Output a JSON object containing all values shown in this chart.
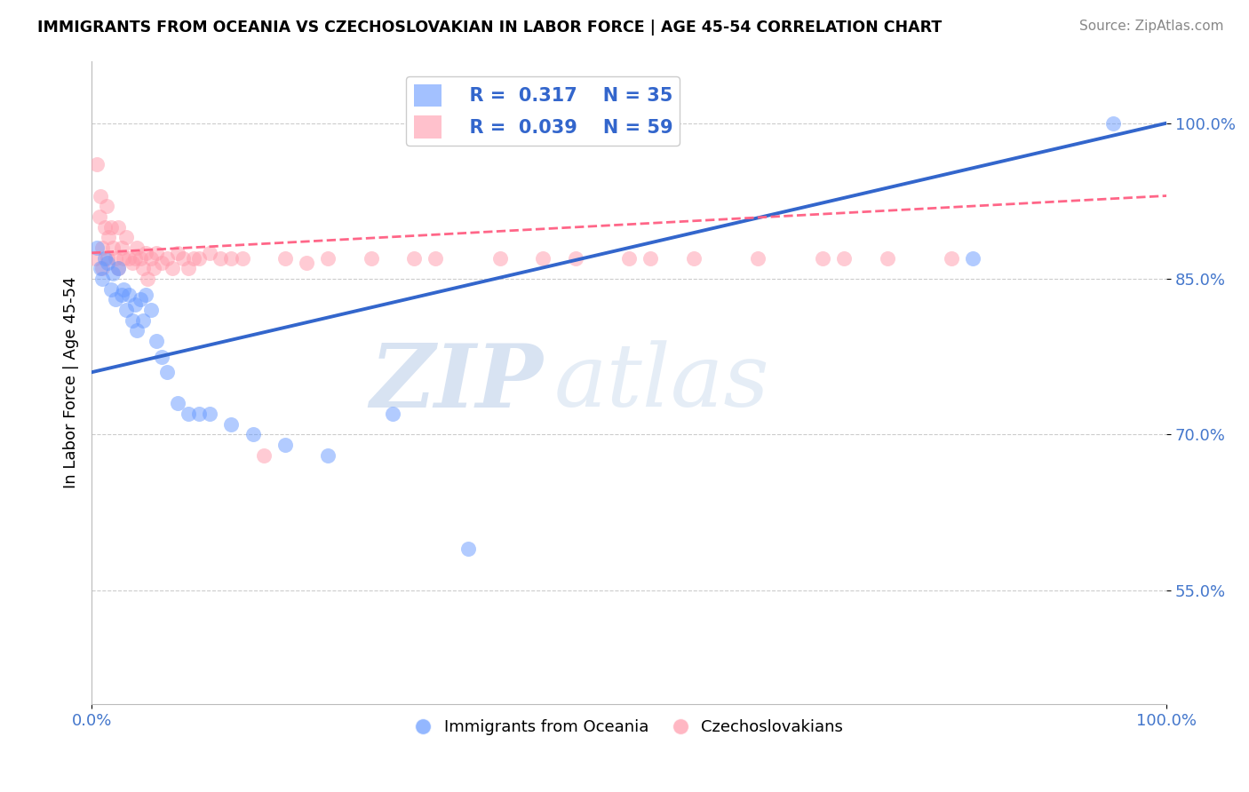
{
  "title": "IMMIGRANTS FROM OCEANIA VS CZECHOSLOVAKIAN IN LABOR FORCE | AGE 45-54 CORRELATION CHART",
  "source": "Source: ZipAtlas.com",
  "ylabel": "In Labor Force | Age 45-54",
  "xlim": [
    0.0,
    1.0
  ],
  "ylim": [
    0.44,
    1.06
  ],
  "yticks": [
    0.55,
    0.7,
    0.85,
    1.0
  ],
  "ytick_labels": [
    "55.0%",
    "70.0%",
    "85.0%",
    "100.0%"
  ],
  "xticks": [
    0.0,
    1.0
  ],
  "xtick_labels": [
    "0.0%",
    "100.0%"
  ],
  "legend1_R": "0.317",
  "legend1_N": "35",
  "legend2_R": "0.039",
  "legend2_N": "59",
  "blue_color": "#6699ff",
  "pink_color": "#ff99aa",
  "line_blue": "#3366cc",
  "line_pink": "#ff6688",
  "blue_scatter_x": [
    0.005,
    0.008,
    0.01,
    0.012,
    0.015,
    0.018,
    0.02,
    0.022,
    0.025,
    0.028,
    0.03,
    0.032,
    0.035,
    0.038,
    0.04,
    0.042,
    0.045,
    0.048,
    0.05,
    0.055,
    0.06,
    0.065,
    0.07,
    0.08,
    0.09,
    0.1,
    0.11,
    0.13,
    0.15,
    0.18,
    0.22,
    0.28,
    0.35,
    0.82,
    0.95
  ],
  "blue_scatter_y": [
    0.88,
    0.86,
    0.85,
    0.87,
    0.865,
    0.84,
    0.855,
    0.83,
    0.86,
    0.835,
    0.84,
    0.82,
    0.835,
    0.81,
    0.825,
    0.8,
    0.83,
    0.81,
    0.835,
    0.82,
    0.79,
    0.775,
    0.76,
    0.73,
    0.72,
    0.72,
    0.72,
    0.71,
    0.7,
    0.69,
    0.68,
    0.72,
    0.59,
    0.87,
    1.0
  ],
  "pink_scatter_x": [
    0.003,
    0.005,
    0.007,
    0.008,
    0.01,
    0.01,
    0.012,
    0.014,
    0.015,
    0.016,
    0.018,
    0.02,
    0.022,
    0.025,
    0.025,
    0.028,
    0.03,
    0.032,
    0.035,
    0.038,
    0.04,
    0.042,
    0.045,
    0.048,
    0.05,
    0.052,
    0.055,
    0.058,
    0.06,
    0.065,
    0.07,
    0.075,
    0.08,
    0.085,
    0.09,
    0.095,
    0.1,
    0.11,
    0.12,
    0.13,
    0.14,
    0.16,
    0.18,
    0.2,
    0.22,
    0.26,
    0.3,
    0.32,
    0.38,
    0.42,
    0.45,
    0.5,
    0.52,
    0.56,
    0.62,
    0.68,
    0.7,
    0.74,
    0.8
  ],
  "pink_scatter_y": [
    0.87,
    0.96,
    0.91,
    0.93,
    0.88,
    0.86,
    0.9,
    0.92,
    0.87,
    0.89,
    0.9,
    0.88,
    0.87,
    0.9,
    0.86,
    0.88,
    0.87,
    0.89,
    0.87,
    0.865,
    0.87,
    0.88,
    0.87,
    0.86,
    0.875,
    0.85,
    0.87,
    0.86,
    0.875,
    0.865,
    0.87,
    0.86,
    0.875,
    0.87,
    0.86,
    0.87,
    0.87,
    0.875,
    0.87,
    0.87,
    0.87,
    0.68,
    0.87,
    0.865,
    0.87,
    0.87,
    0.87,
    0.87,
    0.87,
    0.87,
    0.87,
    0.87,
    0.87,
    0.87,
    0.87,
    0.87,
    0.87,
    0.87,
    0.87
  ],
  "watermark_zip": "ZIP",
  "watermark_atlas": "atlas",
  "background_color": "#ffffff",
  "grid_color": "#cccccc"
}
